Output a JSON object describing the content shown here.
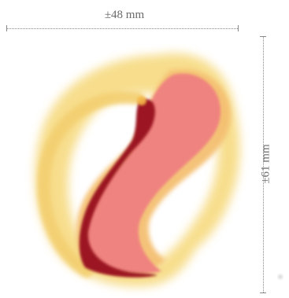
{
  "dimensions": {
    "width_label": "±48 mm",
    "height_label": "±61 mm"
  },
  "colors": {
    "outer_halo": "#f7dc86",
    "middle_layer": "#f2a25e",
    "inner_core": "#ef7f7f",
    "dark_core": "#9b1420",
    "dimension_line": "#8a8a8a"
  }
}
